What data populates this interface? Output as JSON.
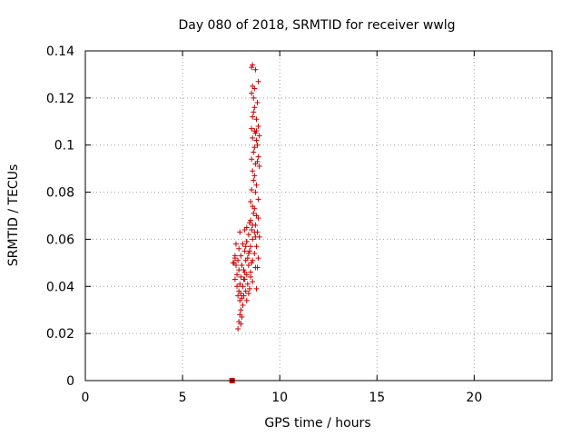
{
  "chart_data": {
    "type": "scatter",
    "title": "Day 080 of 2018, SRMTID for receiver wwlg",
    "xlabel": "GPS time / hours",
    "ylabel": "SRMTID / TECUs",
    "xlim": [
      0,
      24
    ],
    "ylim": [
      0,
      0.14
    ],
    "x_ticks": [
      "0",
      "5",
      "10",
      "15",
      "20"
    ],
    "y_ticks": [
      "0",
      "0.02",
      "0.04",
      "0.06",
      "0.08",
      "0.1",
      "0.12",
      "0.14"
    ],
    "grid": true,
    "legend": "none",
    "color": "#cc0000",
    "marker": "plus",
    "points": [
      [
        8.55,
        0.133
      ],
      [
        8.6,
        0.134
      ],
      [
        8.75,
        0.132
      ],
      [
        8.9,
        0.127
      ],
      [
        8.6,
        0.125
      ],
      [
        8.7,
        0.124
      ],
      [
        8.55,
        0.122
      ],
      [
        8.65,
        0.12
      ],
      [
        8.85,
        0.118
      ],
      [
        8.7,
        0.116
      ],
      [
        8.65,
        0.114
      ],
      [
        8.6,
        0.112
      ],
      [
        8.8,
        0.111
      ],
      [
        8.9,
        0.108
      ],
      [
        8.55,
        0.107
      ],
      [
        8.7,
        0.106
      ],
      [
        8.75,
        0.105
      ],
      [
        8.95,
        0.104
      ],
      [
        8.6,
        0.103
      ],
      [
        8.8,
        0.102
      ],
      [
        8.85,
        0.1
      ],
      [
        8.7,
        0.099
      ],
      [
        8.65,
        0.097
      ],
      [
        8.9,
        0.095
      ],
      [
        8.55,
        0.094
      ],
      [
        8.75,
        0.092
      ],
      [
        8.95,
        0.091
      ],
      [
        8.6,
        0.089
      ],
      [
        8.7,
        0.087
      ],
      [
        8.65,
        0.085
      ],
      [
        8.8,
        0.083
      ],
      [
        8.55,
        0.081
      ],
      [
        8.75,
        0.08
      ],
      [
        8.9,
        0.077
      ],
      [
        8.5,
        0.076
      ],
      [
        8.6,
        0.074
      ],
      [
        8.7,
        0.073
      ],
      [
        8.8,
        0.07
      ],
      [
        8.9,
        0.069
      ],
      [
        8.45,
        0.067
      ],
      [
        8.6,
        0.066
      ],
      [
        8.75,
        0.066
      ],
      [
        8.3,
        0.065
      ],
      [
        8.55,
        0.064
      ],
      [
        8.2,
        0.064
      ],
      [
        8.85,
        0.063
      ],
      [
        7.95,
        0.063
      ],
      [
        8.4,
        0.062
      ],
      [
        8.75,
        0.061
      ],
      [
        8.95,
        0.061
      ],
      [
        8.6,
        0.06
      ],
      [
        8.3,
        0.059
      ],
      [
        7.75,
        0.058
      ],
      [
        8.1,
        0.058
      ],
      [
        8.5,
        0.057
      ],
      [
        8.8,
        0.057
      ],
      [
        7.9,
        0.056
      ],
      [
        8.2,
        0.055
      ],
      [
        8.45,
        0.055
      ],
      [
        8.7,
        0.054
      ],
      [
        7.7,
        0.053
      ],
      [
        8.0,
        0.053
      ],
      [
        8.35,
        0.052
      ],
      [
        8.9,
        0.052
      ],
      [
        7.85,
        0.051
      ],
      [
        8.25,
        0.051
      ],
      [
        8.55,
        0.05
      ],
      [
        7.65,
        0.05
      ],
      [
        8.05,
        0.049
      ],
      [
        8.4,
        0.049
      ],
      [
        8.75,
        0.048
      ],
      [
        7.9,
        0.047
      ],
      [
        8.15,
        0.047
      ],
      [
        8.5,
        0.046
      ],
      [
        8.85,
        0.048
      ],
      [
        7.8,
        0.045
      ],
      [
        8.3,
        0.045
      ],
      [
        8.0,
        0.044
      ],
      [
        7.7,
        0.043
      ],
      [
        8.2,
        0.043
      ],
      [
        8.6,
        0.042
      ],
      [
        7.95,
        0.041
      ],
      [
        8.35,
        0.041
      ],
      [
        7.8,
        0.04
      ],
      [
        8.1,
        0.04
      ],
      [
        8.8,
        0.039
      ],
      [
        8.45,
        0.039
      ],
      [
        7.9,
        0.038
      ],
      [
        8.25,
        0.038
      ],
      [
        8.0,
        0.037
      ],
      [
        8.4,
        0.037
      ],
      [
        7.85,
        0.036
      ],
      [
        8.15,
        0.036
      ],
      [
        8.05,
        0.035
      ],
      [
        7.95,
        0.034
      ],
      [
        8.3,
        0.034
      ],
      [
        8.1,
        0.032
      ],
      [
        8.0,
        0.03
      ],
      [
        7.95,
        0.028
      ],
      [
        8.05,
        0.027
      ],
      [
        7.9,
        0.025
      ],
      [
        8.0,
        0.024
      ],
      [
        7.85,
        0.022
      ],
      [
        8.3,
        0.059
      ],
      [
        8.6,
        0.051
      ],
      [
        7.75,
        0.049
      ],
      [
        8.5,
        0.044
      ],
      [
        8.7,
        0.063
      ],
      [
        8.2,
        0.046
      ],
      [
        8.4,
        0.054
      ],
      [
        8.8,
        0.106
      ],
      [
        8.85,
        0.093
      ],
      [
        8.65,
        0.071
      ],
      [
        8.25,
        0.057
      ],
      [
        8.5,
        0.068
      ],
      [
        7.7,
        0.052
      ],
      [
        8.15,
        0.043
      ],
      [
        7.6,
        0.05
      ]
    ],
    "squares": [
      [
        7.55,
        0.0
      ]
    ]
  }
}
